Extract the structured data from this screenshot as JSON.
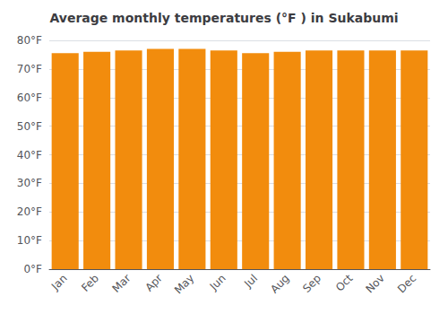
{
  "chart_data": {
    "type": "bar",
    "title": "Average monthly temperatures (°F ) in Sukabumi",
    "categories": [
      "Jan",
      "Feb",
      "Mar",
      "Apr",
      "May",
      "Jun",
      "Jul",
      "Aug",
      "Sep",
      "Oct",
      "Nov",
      "Dec"
    ],
    "values": [
      75.5,
      76.0,
      76.5,
      77.0,
      77.0,
      76.5,
      75.5,
      76.0,
      76.5,
      76.5,
      76.5,
      76.5
    ],
    "color": "#f28c0d",
    "ylim": [
      0,
      80
    ],
    "yticks": [
      {
        "value": 0,
        "label": "0°F"
      },
      {
        "value": 10,
        "label": "10°F"
      },
      {
        "value": 20,
        "label": "20°F"
      },
      {
        "value": 30,
        "label": "30°F"
      },
      {
        "value": 40,
        "label": "40°F"
      },
      {
        "value": 50,
        "label": "50°F"
      },
      {
        "value": 60,
        "label": "60°F"
      },
      {
        "value": 70,
        "label": "70°F"
      },
      {
        "value": 80,
        "label": "80°F"
      }
    ],
    "grid": true
  }
}
